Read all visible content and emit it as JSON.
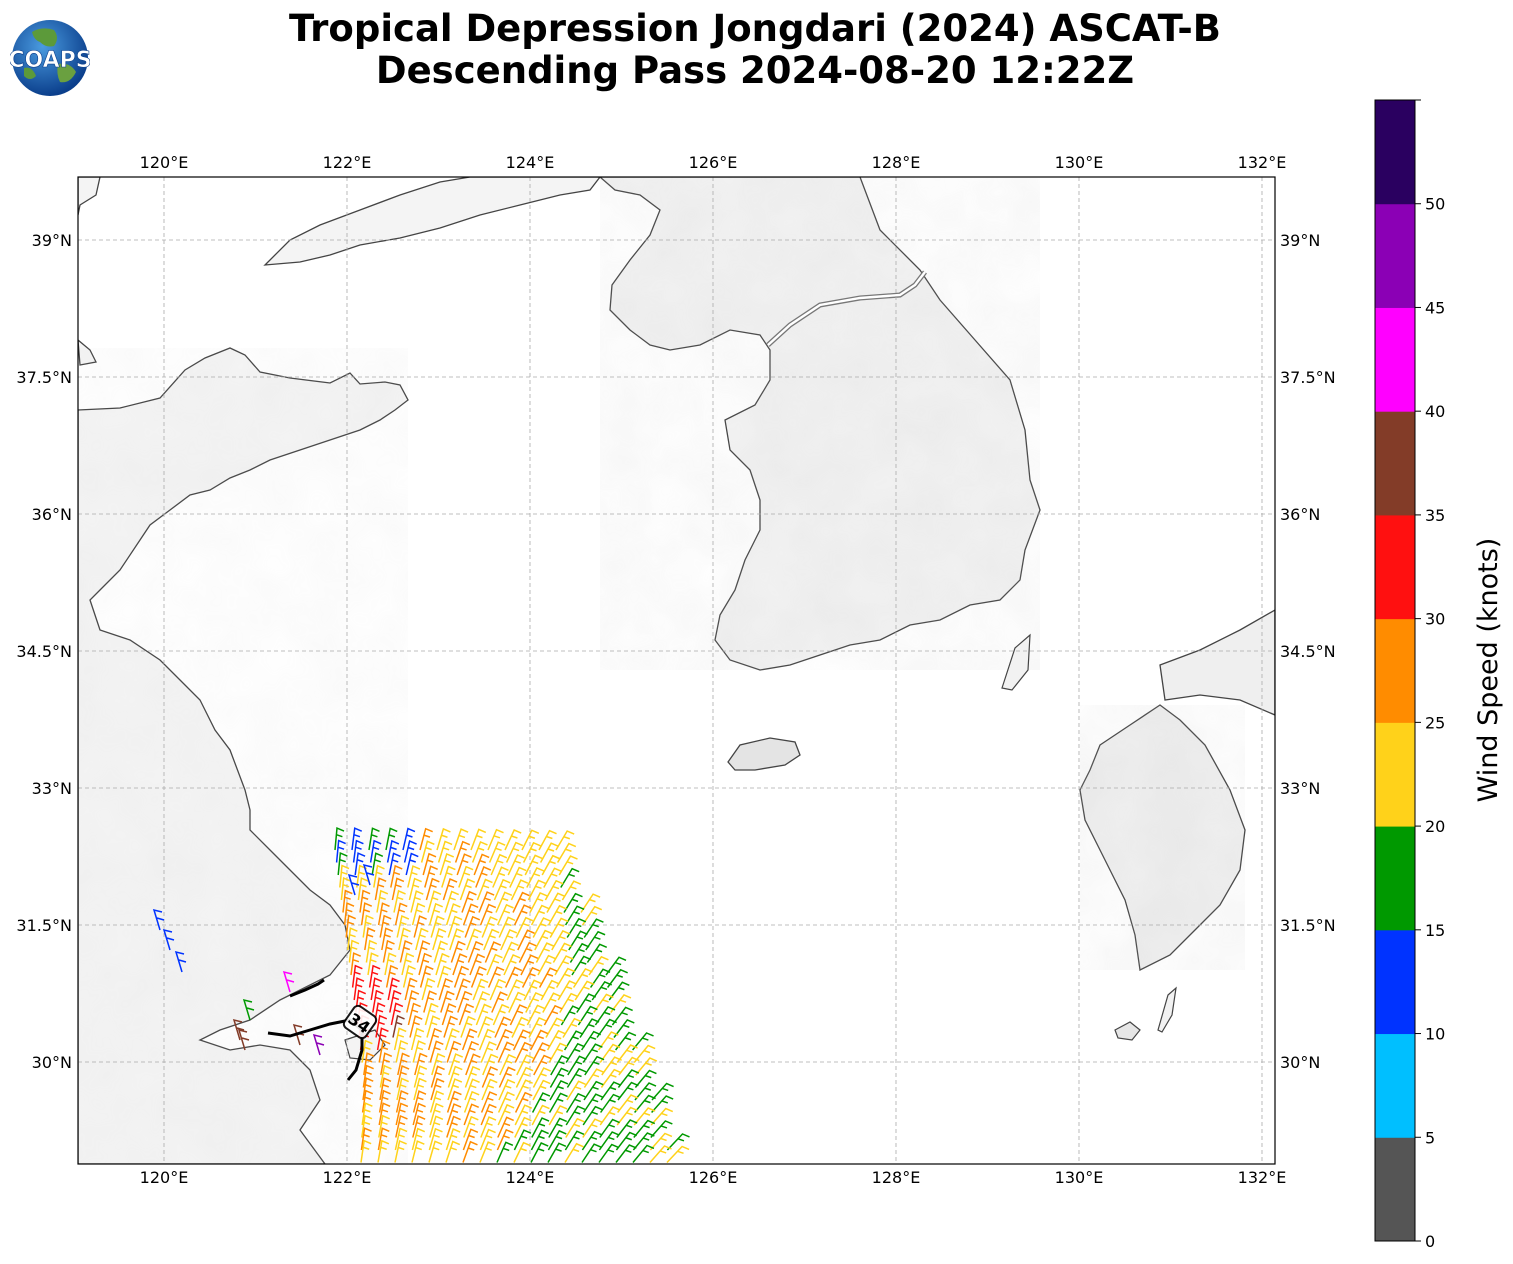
{
  "title": {
    "line1": "Tropical Depression Jongdari (2024) ASCAT-B",
    "line2": "Descending Pass 2024-08-20 12:22Z"
  },
  "logo": {
    "text": "COAPS",
    "icon": "globe-logo-icon"
  },
  "map": {
    "lon_ticks": [
      "120°E",
      "122°E",
      "124°E",
      "126°E",
      "128°E",
      "130°E",
      "132°E"
    ],
    "lat_ticks": [
      "39°N",
      "37.5°N",
      "36°N",
      "34.5°N",
      "33°N",
      "31.5°N",
      "30°N"
    ],
    "lon_range": [
      119.0,
      132.1
    ],
    "lat_range": [
      29.0,
      39.7
    ],
    "storm_label": "34",
    "gridlines": true
  },
  "colorbar": {
    "label": "Wind Speed (knots)",
    "ticks": [
      "0",
      "5",
      "10",
      "15",
      "20",
      "25",
      "30",
      "35",
      "40",
      "45",
      "50"
    ],
    "bins": [
      {
        "range": "0-5",
        "color": "#555555"
      },
      {
        "range": "5-10",
        "color": "#00bfff"
      },
      {
        "range": "10-15",
        "color": "#0033ff"
      },
      {
        "range": "15-20",
        "color": "#009900"
      },
      {
        "range": "20-25",
        "color": "#ffd21a"
      },
      {
        "range": "25-30",
        "color": "#ff8c00"
      },
      {
        "range": "30-35",
        "color": "#ff1010"
      },
      {
        "range": "35-40",
        "color": "#833c28"
      },
      {
        "range": "40-45",
        "color": "#ff00ff"
      },
      {
        "range": "45-50",
        "color": "#8b00b5"
      },
      {
        "range": "50+",
        "color": "#2a0060"
      }
    ]
  }
}
